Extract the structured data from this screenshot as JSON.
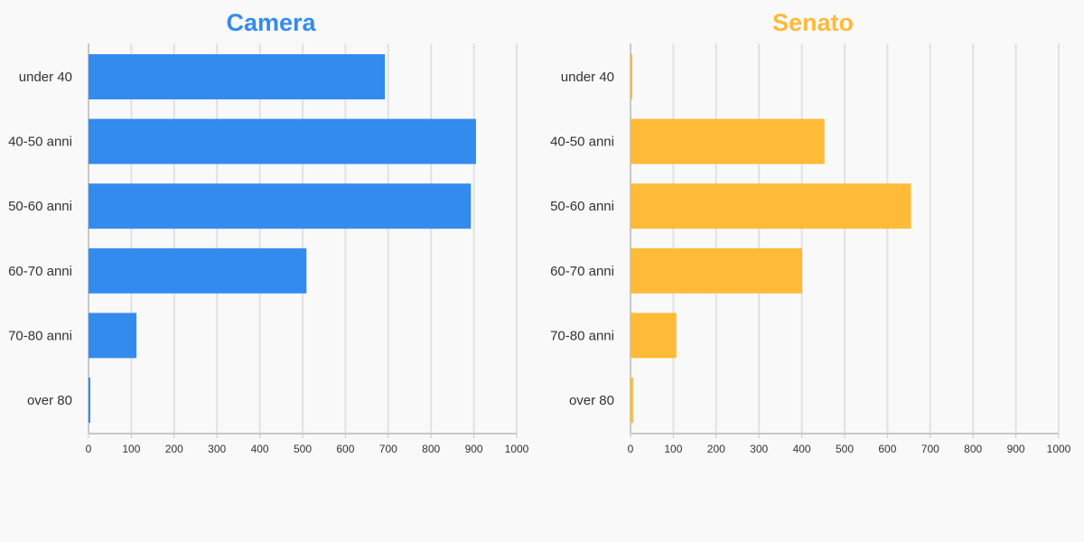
{
  "chart_data": [
    {
      "type": "bar",
      "orientation": "horizontal",
      "title": "Camera",
      "color": "#338ced",
      "categories": [
        "under 40",
        "40-50 anni",
        "50-60 anni",
        "60-70 anni",
        "70-80 anni",
        "over 80"
      ],
      "values": [
        692,
        905,
        893,
        509,
        112,
        3
      ],
      "xlim": [
        0,
        1000
      ],
      "xticks": [
        "0",
        "100",
        "200",
        "300",
        "400",
        "500",
        "600",
        "700",
        "800",
        "900",
        "1000"
      ],
      "grid": true,
      "xlabel": "",
      "ylabel": ""
    },
    {
      "type": "bar",
      "orientation": "horizontal",
      "title": "Senato",
      "color": "#ffba38",
      "categories": [
        "under 40",
        "40-50 anni",
        "50-60 anni",
        "60-70 anni",
        "70-80 anni",
        "over 80"
      ],
      "values": [
        1,
        453,
        655,
        401,
        107,
        6
      ],
      "xlim": [
        0,
        1000
      ],
      "xticks": [
        "0",
        "100",
        "200",
        "300",
        "400",
        "500",
        "600",
        "700",
        "800",
        "900",
        "1000"
      ],
      "grid": true,
      "xlabel": "",
      "ylabel": ""
    }
  ]
}
